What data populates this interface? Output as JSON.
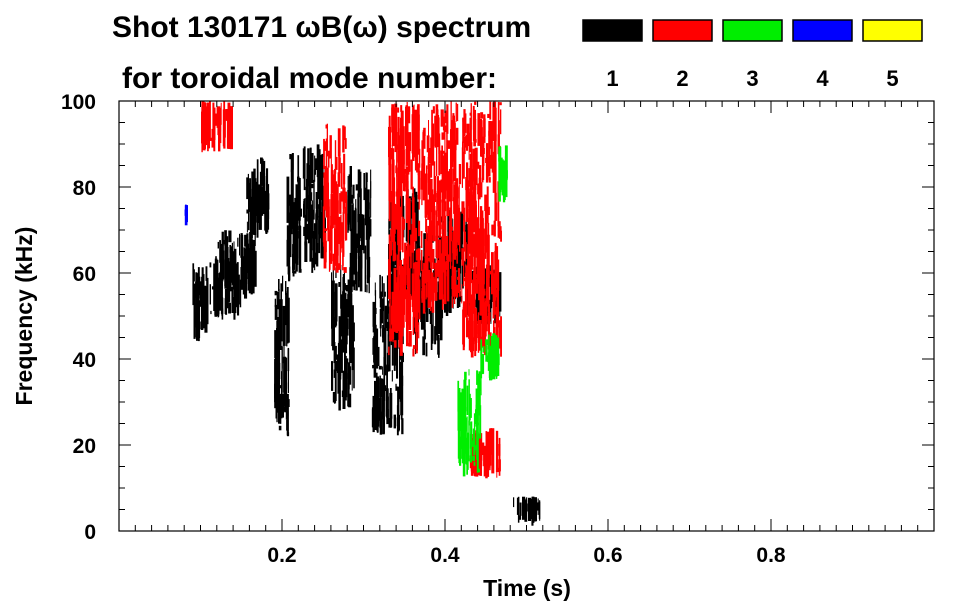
{
  "chart_data": {
    "type": "heatmap",
    "title": "Shot 130171 ωB(ω) spectrum",
    "subtitle": "for toroidal mode number:",
    "xlabel": "Time (s)",
    "ylabel": "Frequency (kHz)",
    "xlim": [
      0.0,
      1.0
    ],
    "ylim": [
      0,
      100
    ],
    "x_ticks": [
      0.2,
      0.4,
      0.6,
      0.8
    ],
    "x_tick_labels": [
      "0.2",
      "0.4",
      "0.6",
      "0.8"
    ],
    "y_ticks": [
      0,
      20,
      40,
      60,
      80,
      100
    ],
    "y_tick_labels": [
      "0",
      "20",
      "40",
      "60",
      "80",
      "100"
    ],
    "grid": false,
    "legend": {
      "placement": "top-right",
      "entries": [
        {
          "label": "1",
          "color": "#000000"
        },
        {
          "label": "2",
          "color": "#ff0000"
        },
        {
          "label": "3",
          "color": "#00ee00"
        },
        {
          "label": "4",
          "color": "#0000ff"
        },
        {
          "label": "5",
          "color": "#ffff00"
        }
      ]
    },
    "regions": [
      {
        "mode": "1",
        "t": [
          0.09,
          0.11
        ],
        "f": [
          44,
          63
        ]
      },
      {
        "mode": "1",
        "t": [
          0.11,
          0.15
        ],
        "f": [
          49,
          64
        ]
      },
      {
        "mode": "1",
        "t": [
          0.12,
          0.17
        ],
        "f": [
          54,
          70
        ]
      },
      {
        "mode": "1",
        "t": [
          0.155,
          0.185
        ],
        "f": [
          68,
          87
        ]
      },
      {
        "mode": "1",
        "t": [
          0.19,
          0.21
        ],
        "f": [
          22,
          60
        ]
      },
      {
        "mode": "1",
        "t": [
          0.205,
          0.225
        ],
        "f": [
          58,
          88
        ]
      },
      {
        "mode": "1",
        "t": [
          0.225,
          0.255
        ],
        "f": [
          60,
          90
        ]
      },
      {
        "mode": "1",
        "t": [
          0.26,
          0.29
        ],
        "f": [
          28,
          62
        ]
      },
      {
        "mode": "1",
        "t": [
          0.28,
          0.31
        ],
        "f": [
          55,
          85
        ]
      },
      {
        "mode": "1",
        "t": [
          0.31,
          0.35
        ],
        "f": [
          22,
          60
        ]
      },
      {
        "mode": "1",
        "t": [
          0.33,
          0.37
        ],
        "f": [
          50,
          80
        ]
      },
      {
        "mode": "1",
        "t": [
          0.36,
          0.4
        ],
        "f": [
          40,
          70
        ]
      },
      {
        "mode": "1",
        "t": [
          0.39,
          0.43
        ],
        "f": [
          50,
          75
        ]
      },
      {
        "mode": "1",
        "t": [
          0.43,
          0.47
        ],
        "f": [
          48,
          62
        ]
      },
      {
        "mode": "1",
        "t": [
          0.48,
          0.52
        ],
        "f": [
          2,
          8
        ]
      },
      {
        "mode": "2",
        "t": [
          0.1,
          0.14
        ],
        "f": [
          88,
          100
        ]
      },
      {
        "mode": "2",
        "t": [
          0.25,
          0.28
        ],
        "f": [
          60,
          95
        ]
      },
      {
        "mode": "2",
        "t": [
          0.33,
          0.37
        ],
        "f": [
          40,
          100
        ]
      },
      {
        "mode": "2",
        "t": [
          0.37,
          0.42
        ],
        "f": [
          50,
          100
        ]
      },
      {
        "mode": "2",
        "t": [
          0.42,
          0.47
        ],
        "f": [
          40,
          100
        ]
      },
      {
        "mode": "2",
        "t": [
          0.43,
          0.47
        ],
        "f": [
          12,
          24
        ]
      },
      {
        "mode": "3",
        "t": [
          0.415,
          0.445
        ],
        "f": [
          12,
          38
        ]
      },
      {
        "mode": "3",
        "t": [
          0.44,
          0.47
        ],
        "f": [
          35,
          46
        ]
      },
      {
        "mode": "3",
        "t": [
          0.465,
          0.48
        ],
        "f": [
          76,
          90
        ]
      },
      {
        "mode": "4",
        "t": [
          0.08,
          0.085
        ],
        "f": [
          72,
          76
        ]
      }
    ]
  }
}
